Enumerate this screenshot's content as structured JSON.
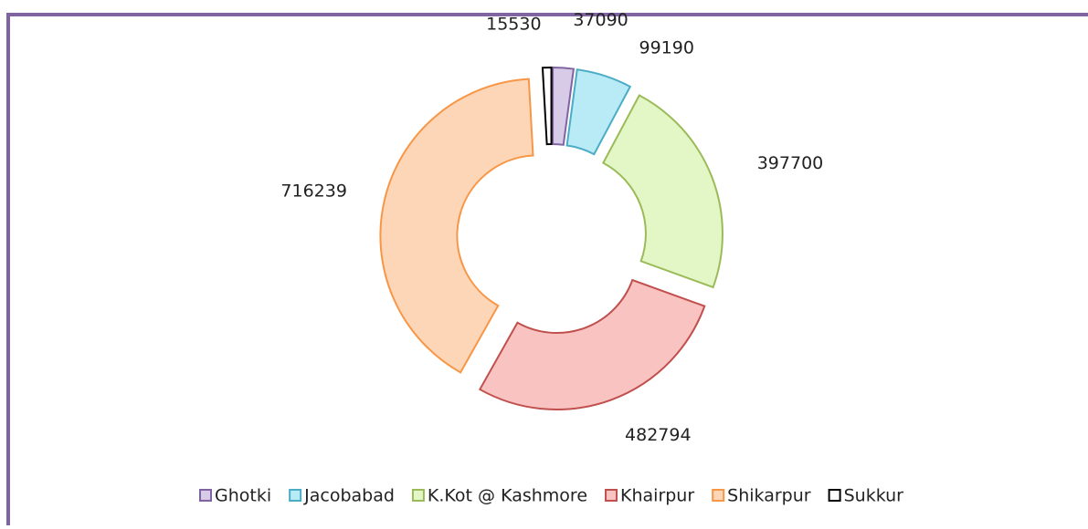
{
  "chart_data": {
    "type": "donut",
    "categories": [
      "Ghotki",
      "Jacobabad",
      "K.Kot @ Kashmore",
      "Khairpur",
      "Shikarpur",
      "Sukkur"
    ],
    "values": [
      37090,
      99190,
      397700,
      482794,
      716239,
      15530
    ],
    "colors": [
      "#d8cbe8",
      "#b9ebf7",
      "#e3f6c6",
      "#f9c3c2",
      "#fcd6b6",
      "#ffffff"
    ],
    "stroke_colors": [
      "#8064a2",
      "#4bacc6",
      "#9bbb59",
      "#c0504d",
      "#f79646",
      "#000000"
    ],
    "legend": "bottom"
  }
}
